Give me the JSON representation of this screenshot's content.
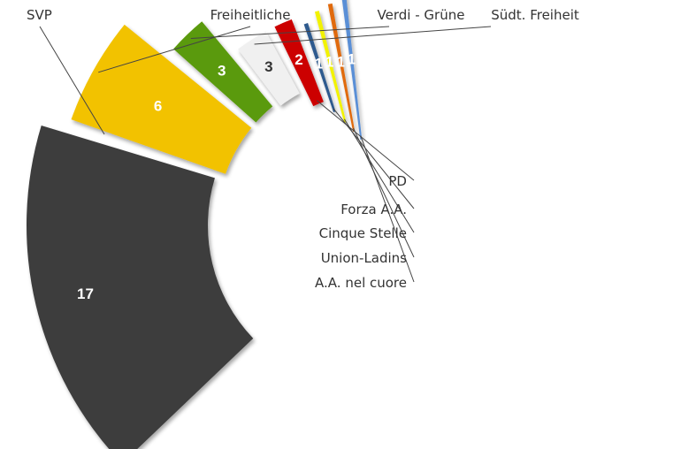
{
  "chart_data": {
    "type": "pie",
    "categories": [
      "SVP",
      "Freiheitliche",
      "Verdi - Grüne",
      "Südt. Freiheit",
      "PD",
      "Forza A.A.",
      "Cinque Stelle",
      "Union-Ladins",
      "A.A. nel cuore"
    ],
    "values": [
      17,
      6,
      3,
      3,
      2,
      1,
      1,
      1,
      1
    ],
    "colors": [
      "#3d3d3d",
      "#f2c200",
      "#5a9a08",
      "#f0f0f0",
      "#cc0000",
      "#2e5a8e",
      "#f2f200",
      "#e06a10",
      "#5a8fd6"
    ],
    "label_text": [
      "17",
      "6",
      "3",
      "3",
      "2",
      "1",
      "1",
      "1",
      "1"
    ],
    "title": "",
    "legend": "leader-line labels"
  }
}
